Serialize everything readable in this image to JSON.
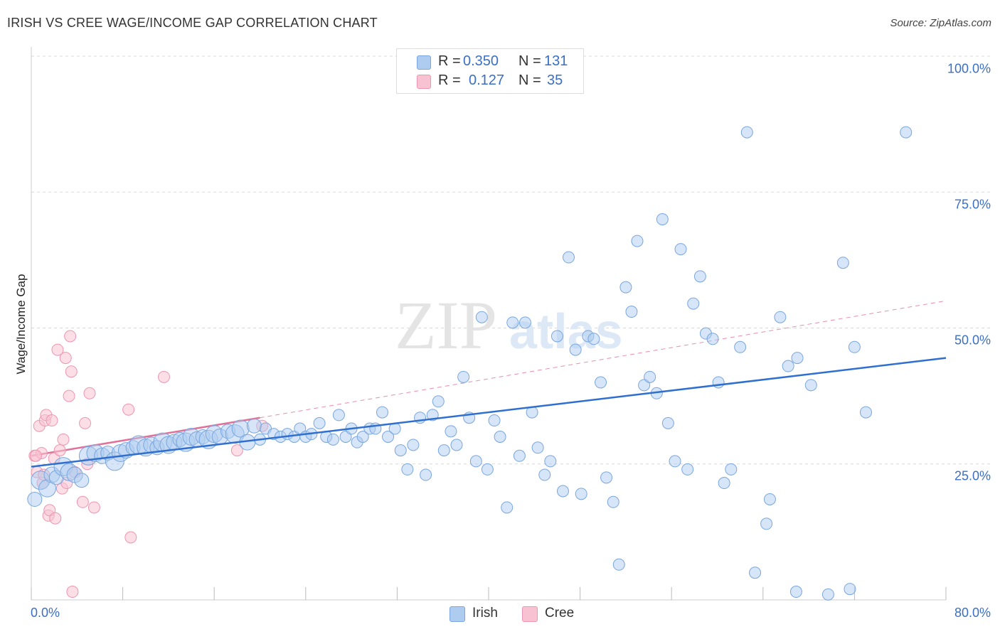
{
  "header": {
    "title": "IRISH VS CREE WAGE/INCOME GAP CORRELATION CHART",
    "source": "Source: ZipAtlas.com"
  },
  "watermark": {
    "text_zip": "ZIP",
    "text_atlas": "atlas"
  },
  "legend": {
    "r_label": "R =",
    "n_label": "N =",
    "irish": {
      "r": "0.350",
      "n": "131"
    },
    "cree": {
      "r": "0.127",
      "n": "35"
    }
  },
  "colors": {
    "irish_fill": "#aecbf0",
    "irish_stroke": "#7aa6dd",
    "irish_line": "#2f6fcf",
    "cree_fill": "#f8c2d2",
    "cree_stroke": "#ee95b1",
    "cree_line": "#e2719a",
    "axis_text": "#3a6fc4",
    "grid": "#d9d9d9"
  },
  "chart_data": {
    "type": "scatter",
    "xlabel": "",
    "ylabel": "Wage/Income Gap",
    "xlim": [
      0,
      80
    ],
    "ylim": [
      0,
      100
    ],
    "x_tick_labels": [
      "0.0%",
      "80.0%"
    ],
    "y_ticks": [
      25,
      50,
      75,
      100
    ],
    "y_tick_labels": [
      "25.0%",
      "50.0%",
      "75.0%",
      "100.0%"
    ],
    "grid": true,
    "legend_position": "top-center",
    "series": [
      {
        "name": "Irish",
        "r": 0.35,
        "n": 131,
        "trend": {
          "x": [
            0,
            80
          ],
          "y": [
            24.5,
            44.5
          ],
          "style": "solid"
        },
        "points": [
          [
            0.3,
            18.5
          ],
          [
            0.8,
            22
          ],
          [
            1.4,
            20.5
          ],
          [
            1.8,
            23
          ],
          [
            2.2,
            22.5
          ],
          [
            2.8,
            24.5
          ],
          [
            3.3,
            23.5
          ],
          [
            3.8,
            23
          ],
          [
            4.4,
            22
          ],
          [
            5,
            26.5
          ],
          [
            5.6,
            27
          ],
          [
            6.2,
            26.5
          ],
          [
            6.7,
            27
          ],
          [
            7.3,
            25.5
          ],
          [
            7.8,
            27
          ],
          [
            8.3,
            27.5
          ],
          [
            8.9,
            28
          ],
          [
            9.4,
            28.5
          ],
          [
            10,
            28
          ],
          [
            10.5,
            28.5
          ],
          [
            11,
            28
          ],
          [
            11.5,
            29
          ],
          [
            12,
            28.5
          ],
          [
            12.5,
            29
          ],
          [
            13,
            29.5
          ],
          [
            13.5,
            29
          ],
          [
            14,
            30
          ],
          [
            14.5,
            29.5
          ],
          [
            15,
            30
          ],
          [
            15.5,
            29.5
          ],
          [
            16,
            30.5
          ],
          [
            16.5,
            30
          ],
          [
            17.2,
            31
          ],
          [
            17.8,
            30.5
          ],
          [
            18.3,
            31.5
          ],
          [
            18.9,
            29
          ],
          [
            19.5,
            32
          ],
          [
            20,
            29.5
          ],
          [
            20.5,
            31.5
          ],
          [
            21.2,
            30.5
          ],
          [
            21.8,
            30
          ],
          [
            22.4,
            30.5
          ],
          [
            23,
            30
          ],
          [
            23.5,
            31.5
          ],
          [
            24,
            30
          ],
          [
            24.5,
            30.5
          ],
          [
            25.2,
            32.5
          ],
          [
            25.8,
            30
          ],
          [
            26.4,
            29.5
          ],
          [
            26.9,
            34
          ],
          [
            27.5,
            30
          ],
          [
            28,
            31.5
          ],
          [
            28.5,
            29
          ],
          [
            29,
            30
          ],
          [
            29.6,
            31.5
          ],
          [
            30.1,
            31.5
          ],
          [
            30.7,
            34.5
          ],
          [
            31.2,
            30
          ],
          [
            31.8,
            31.5
          ],
          [
            32.3,
            27.5
          ],
          [
            32.9,
            24
          ],
          [
            33.4,
            28.5
          ],
          [
            34,
            33.5
          ],
          [
            34.5,
            23
          ],
          [
            35.1,
            34
          ],
          [
            35.6,
            36.5
          ],
          [
            36.1,
            27.5
          ],
          [
            36.7,
            31
          ],
          [
            37.2,
            28.5
          ],
          [
            37.8,
            41
          ],
          [
            38.3,
            33.5
          ],
          [
            38.9,
            25.5
          ],
          [
            39.4,
            52
          ],
          [
            39.9,
            24
          ],
          [
            40.5,
            33
          ],
          [
            41,
            30
          ],
          [
            41.6,
            17
          ],
          [
            42.1,
            51
          ],
          [
            42.7,
            26.5
          ],
          [
            43.2,
            51
          ],
          [
            43.8,
            34.5
          ],
          [
            44.3,
            28
          ],
          [
            44.9,
            23
          ],
          [
            45.4,
            25.5
          ],
          [
            46,
            48.5
          ],
          [
            46.5,
            20
          ],
          [
            47,
            63
          ],
          [
            47.6,
            46
          ],
          [
            48.1,
            19.5
          ],
          [
            48.7,
            48.5
          ],
          [
            49.2,
            48
          ],
          [
            49.8,
            40
          ],
          [
            50.3,
            22.5
          ],
          [
            50.9,
            18
          ],
          [
            51.4,
            6.5
          ],
          [
            52,
            57.5
          ],
          [
            52.5,
            53
          ],
          [
            53,
            66
          ],
          [
            53.6,
            39.5
          ],
          [
            54.1,
            41
          ],
          [
            54.7,
            38
          ],
          [
            55.2,
            70
          ],
          [
            55.7,
            32.5
          ],
          [
            56.3,
            25.5
          ],
          [
            56.8,
            64.5
          ],
          [
            57.4,
            24
          ],
          [
            57.9,
            54.5
          ],
          [
            58.5,
            59.5
          ],
          [
            59,
            49
          ],
          [
            59.6,
            48
          ],
          [
            60.1,
            40
          ],
          [
            60.6,
            21.5
          ],
          [
            61.2,
            24
          ],
          [
            62,
            46.5
          ],
          [
            62.6,
            86
          ],
          [
            63.3,
            5
          ],
          [
            64.3,
            14
          ],
          [
            65.5,
            52
          ],
          [
            66.2,
            43
          ],
          [
            66.9,
            1.5
          ],
          [
            67,
            44.5
          ],
          [
            68.2,
            39.5
          ],
          [
            69.7,
            1
          ],
          [
            71,
            62
          ],
          [
            71.6,
            2
          ],
          [
            72,
            46.5
          ],
          [
            73,
            34.5
          ],
          [
            76.5,
            86
          ],
          [
            64.6,
            18.5
          ]
        ]
      },
      {
        "name": "Cree",
        "r": 0.127,
        "n": 35,
        "trend": {
          "x": [
            0,
            20
          ],
          "y": [
            26.5,
            33.5
          ],
          "style": "solid",
          "extension": {
            "x": [
              20,
              80
            ],
            "y": [
              33.5,
              55
            ],
            "style": "dashed"
          }
        },
        "points": [
          [
            0.3,
            26.5
          ],
          [
            0.5,
            23.5
          ],
          [
            0.7,
            32
          ],
          [
            0.9,
            27
          ],
          [
            1,
            21.5
          ],
          [
            1.2,
            33
          ],
          [
            1.3,
            34
          ],
          [
            1.5,
            15.5
          ],
          [
            1.6,
            16.5
          ],
          [
            1.8,
            33
          ],
          [
            2,
            26
          ],
          [
            2.1,
            15
          ],
          [
            2.3,
            46
          ],
          [
            2.5,
            27.5
          ],
          [
            2.7,
            20.5
          ],
          [
            2.8,
            29.5
          ],
          [
            3,
            44.5
          ],
          [
            3.1,
            21.5
          ],
          [
            3.3,
            37.5
          ],
          [
            3.4,
            48.5
          ],
          [
            3.5,
            42
          ],
          [
            3.6,
            1.5
          ],
          [
            3.8,
            23.5
          ],
          [
            4.5,
            18
          ],
          [
            4.7,
            32.5
          ],
          [
            4.9,
            25
          ],
          [
            5.1,
            38
          ],
          [
            5.5,
            17
          ],
          [
            8.5,
            35
          ],
          [
            8.7,
            11.5
          ],
          [
            11.6,
            41
          ],
          [
            18,
            27.5
          ],
          [
            20.2,
            32
          ],
          [
            0.4,
            26.5
          ],
          [
            1.1,
            23
          ]
        ]
      }
    ]
  },
  "bottom_legend": [
    {
      "label": "Irish"
    },
    {
      "label": "Cree"
    }
  ]
}
